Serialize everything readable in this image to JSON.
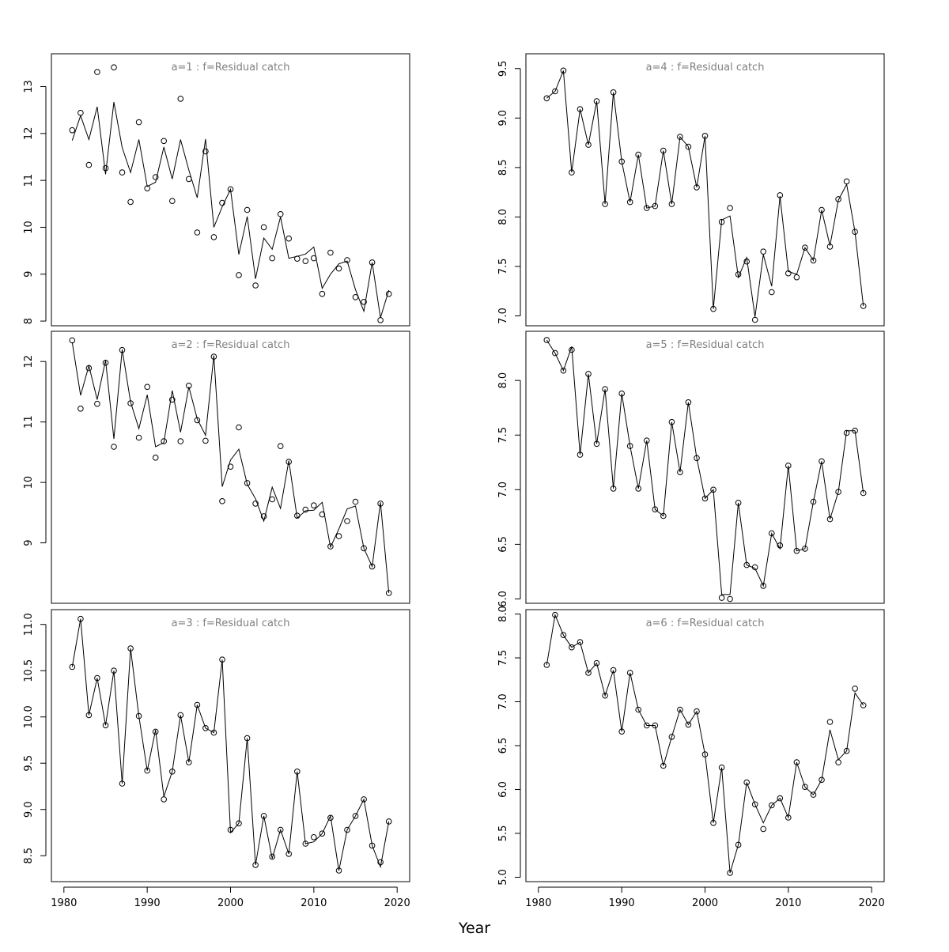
{
  "figure": {
    "xlabel": "Year"
  },
  "colors": {
    "frame": "#000000",
    "line": "#000000",
    "title": "#808080"
  },
  "chart_data": [
    {
      "type": "line",
      "title": "a=1  :  f=Residual catch",
      "x": [
        1981,
        1982,
        1983,
        1984,
        1985,
        1986,
        1987,
        1988,
        1989,
        1990,
        1991,
        1992,
        1993,
        1994,
        1995,
        1996,
        1997,
        1998,
        1999,
        2000,
        2001,
        2002,
        2003,
        2004,
        2005,
        2006,
        2007,
        2008,
        2009,
        2010,
        2011,
        2012,
        2013,
        2014,
        2015,
        2016,
        2017,
        2018,
        2019
      ],
      "observed": [
        12.07,
        12.44,
        11.33,
        13.31,
        11.26,
        13.41,
        11.17,
        10.54,
        12.24,
        10.83,
        11.07,
        11.84,
        10.56,
        12.74,
        11.03,
        9.89,
        11.62,
        9.79,
        10.52,
        10.81,
        8.98,
        10.37,
        8.76,
        10.0,
        9.34,
        10.28,
        9.76,
        9.33,
        9.28,
        9.34,
        8.58,
        9.46,
        9.12,
        9.3,
        8.51,
        8.41,
        9.25,
        8.02,
        8.58
      ],
      "fitted": [
        11.85,
        12.38,
        11.87,
        12.57,
        11.13,
        12.67,
        11.7,
        11.17,
        11.87,
        10.87,
        10.96,
        11.71,
        11.03,
        11.87,
        11.22,
        10.63,
        11.88,
        10.0,
        10.44,
        10.81,
        9.42,
        10.23,
        8.9,
        9.77,
        9.53,
        10.22,
        9.34,
        9.38,
        9.43,
        9.58,
        8.7,
        9.0,
        9.22,
        9.28,
        8.67,
        8.21,
        9.25,
        8.07,
        8.66
      ],
      "xlim": [
        1978.5,
        2021.5
      ],
      "ylim": [
        7.9,
        13.7
      ],
      "yticks": [
        8,
        9,
        10,
        11,
        12,
        13
      ],
      "ytick_labels": [
        "8",
        "9",
        "10",
        "11",
        "12",
        "13"
      ],
      "xticks": [],
      "xtick_labels": []
    },
    {
      "type": "line",
      "title": "a=4  :  f=Residual catch",
      "x": [
        1981,
        1982,
        1983,
        1984,
        1985,
        1986,
        1987,
        1988,
        1989,
        1990,
        1991,
        1992,
        1993,
        1994,
        1995,
        1996,
        1997,
        1998,
        1999,
        2000,
        2001,
        2002,
        2003,
        2004,
        2005,
        2006,
        2007,
        2008,
        2009,
        2010,
        2011,
        2012,
        2013,
        2014,
        2015,
        2016,
        2017,
        2018,
        2019
      ],
      "observed": [
        9.2,
        9.27,
        9.48,
        8.45,
        9.09,
        8.73,
        9.17,
        8.13,
        9.26,
        8.56,
        8.15,
        8.63,
        8.09,
        8.11,
        8.67,
        8.13,
        8.81,
        8.71,
        8.3,
        8.82,
        7.07,
        7.95,
        8.09,
        7.42,
        7.55,
        6.96,
        7.65,
        7.24,
        8.22,
        7.43,
        7.39,
        7.69,
        7.56,
        8.07,
        7.7,
        8.18,
        8.36,
        7.85,
        7.1
      ],
      "fitted": [
        9.2,
        9.27,
        9.48,
        8.45,
        9.09,
        8.73,
        9.17,
        8.13,
        9.26,
        8.56,
        8.15,
        8.63,
        8.09,
        8.11,
        8.67,
        8.13,
        8.81,
        8.71,
        8.3,
        8.82,
        7.07,
        7.97,
        8.01,
        7.39,
        7.59,
        6.99,
        7.62,
        7.3,
        8.21,
        7.45,
        7.42,
        7.69,
        7.56,
        8.07,
        7.71,
        8.17,
        8.33,
        7.85,
        7.1
      ],
      "xlim": [
        1978.5,
        2021.5
      ],
      "ylim": [
        6.9,
        9.65
      ],
      "yticks": [
        7.0,
        7.5,
        8.0,
        8.5,
        9.0,
        9.5
      ],
      "ytick_labels": [
        "7.0",
        "7.5",
        "8.0",
        "8.5",
        "9.0",
        "9.5"
      ],
      "xticks": [],
      "xtick_labels": []
    },
    {
      "type": "line",
      "title": "a=2  :  f=Residual catch",
      "x": [
        1981,
        1982,
        1983,
        1984,
        1985,
        1986,
        1987,
        1988,
        1989,
        1990,
        1991,
        1992,
        1993,
        1994,
        1995,
        1996,
        1997,
        1998,
        1999,
        2000,
        2001,
        2002,
        2003,
        2004,
        2005,
        2006,
        2007,
        2008,
        2009,
        2010,
        2011,
        2012,
        2013,
        2014,
        2015,
        2016,
        2017,
        2018,
        2019
      ],
      "observed": [
        12.35,
        11.22,
        11.89,
        11.3,
        11.98,
        10.59,
        12.19,
        11.31,
        10.74,
        11.58,
        10.41,
        10.68,
        11.37,
        10.68,
        11.6,
        11.03,
        10.69,
        12.08,
        9.69,
        10.26,
        10.91,
        9.99,
        9.65,
        9.44,
        9.72,
        10.6,
        10.34,
        9.45,
        9.55,
        9.62,
        9.47,
        8.94,
        9.11,
        9.36,
        9.68,
        8.91,
        8.61,
        9.65,
        8.17
      ],
      "fitted": [
        12.32,
        11.44,
        11.93,
        11.37,
        12.02,
        10.72,
        12.2,
        11.33,
        10.89,
        11.45,
        10.59,
        10.66,
        11.52,
        10.83,
        11.58,
        11.05,
        10.78,
        12.1,
        9.93,
        10.37,
        10.55,
        9.97,
        9.73,
        9.36,
        9.92,
        9.57,
        10.36,
        9.41,
        9.53,
        9.54,
        9.67,
        8.93,
        9.23,
        9.56,
        9.61,
        8.91,
        8.61,
        9.67,
        8.17
      ],
      "xlim": [
        1978.5,
        2021.5
      ],
      "ylim": [
        8.0,
        12.5
      ],
      "yticks": [
        9,
        10,
        11,
        12
      ],
      "ytick_labels": [
        "9",
        "10",
        "11",
        "12"
      ],
      "xticks": [],
      "xtick_labels": []
    },
    {
      "type": "line",
      "title": "a=5  :  f=Residual catch",
      "x": [
        1981,
        1982,
        1983,
        1984,
        1985,
        1986,
        1987,
        1988,
        1989,
        1990,
        1991,
        1992,
        1993,
        1994,
        1995,
        1996,
        1997,
        1998,
        1999,
        2000,
        2001,
        2002,
        2003,
        2004,
        2005,
        2006,
        2007,
        2008,
        2009,
        2010,
        2011,
        2012,
        2013,
        2014,
        2015,
        2016,
        2017,
        2018,
        2019
      ],
      "observed": [
        8.37,
        8.25,
        8.09,
        8.28,
        7.32,
        8.06,
        7.42,
        7.92,
        7.01,
        7.88,
        7.4,
        7.01,
        7.45,
        6.82,
        6.76,
        7.62,
        7.16,
        7.8,
        7.29,
        6.92,
        7.0,
        6.01,
        6.0,
        6.88,
        6.31,
        6.29,
        6.12,
        6.6,
        6.49,
        7.22,
        6.44,
        6.46,
        6.89,
        7.26,
        6.73,
        6.98,
        7.52,
        7.54,
        6.97
      ],
      "fitted": [
        8.37,
        8.25,
        8.09,
        8.31,
        7.32,
        8.06,
        7.42,
        7.92,
        7.01,
        7.88,
        7.4,
        7.01,
        7.45,
        6.82,
        6.76,
        7.62,
        7.16,
        7.8,
        7.29,
        6.92,
        7.0,
        6.04,
        6.04,
        6.88,
        6.31,
        6.28,
        6.12,
        6.6,
        6.46,
        7.22,
        6.44,
        6.46,
        6.89,
        7.26,
        6.73,
        6.98,
        7.54,
        7.54,
        6.97
      ],
      "xlim": [
        1978.5,
        2021.5
      ],
      "ylim": [
        5.96,
        8.45
      ],
      "yticks": [
        6.0,
        6.5,
        7.0,
        7.5,
        8.0
      ],
      "ytick_labels": [
        "6.0",
        "6.5",
        "7.0",
        "7.5",
        "8.0"
      ],
      "xticks": [],
      "xtick_labels": []
    },
    {
      "type": "line",
      "title": "a=3  :  f=Residual catch",
      "x": [
        1981,
        1982,
        1983,
        1984,
        1985,
        1986,
        1987,
        1988,
        1989,
        1990,
        1991,
        1992,
        1993,
        1994,
        1995,
        1996,
        1997,
        1998,
        1999,
        2000,
        2001,
        2002,
        2003,
        2004,
        2005,
        2006,
        2007,
        2008,
        2009,
        2010,
        2011,
        2012,
        2013,
        2014,
        2015,
        2016,
        2017,
        2018,
        2019
      ],
      "observed": [
        10.54,
        11.06,
        10.02,
        10.42,
        9.91,
        10.5,
        9.28,
        10.74,
        10.01,
        9.42,
        9.84,
        9.11,
        9.41,
        10.02,
        9.51,
        10.13,
        9.88,
        9.83,
        10.62,
        8.78,
        8.85,
        9.77,
        8.4,
        8.93,
        8.49,
        8.78,
        8.52,
        9.41,
        8.63,
        8.7,
        8.74,
        8.91,
        8.34,
        8.78,
        8.93,
        9.11,
        8.61,
        8.43,
        8.87
      ],
      "fitted": [
        10.54,
        11.06,
        10.02,
        10.42,
        9.91,
        10.5,
        9.28,
        10.74,
        10.01,
        9.42,
        9.86,
        9.14,
        9.41,
        10.02,
        9.51,
        10.13,
        9.88,
        9.83,
        10.62,
        8.75,
        8.85,
        9.77,
        8.4,
        8.93,
        8.47,
        8.78,
        8.52,
        9.41,
        8.63,
        8.65,
        8.74,
        8.93,
        8.34,
        8.78,
        8.93,
        9.11,
        8.61,
        8.38,
        8.87
      ],
      "xlim": [
        1978.5,
        2021.5
      ],
      "ylim": [
        8.22,
        11.16
      ],
      "yticks": [
        8.5,
        9.0,
        9.5,
        10.0,
        10.5,
        11.0
      ],
      "ytick_labels": [
        "8.5",
        "9.0",
        "9.5",
        "10.0",
        "10.5",
        "11.0"
      ],
      "xticks": [
        1980,
        1990,
        2000,
        2010,
        2020
      ],
      "xtick_labels": [
        "1980",
        "1990",
        "2000",
        "2010",
        "2020"
      ]
    },
    {
      "type": "line",
      "title": "a=6  :  f=Residual catch",
      "x": [
        1981,
        1982,
        1983,
        1984,
        1985,
        1986,
        1987,
        1988,
        1989,
        1990,
        1991,
        1992,
        1993,
        1994,
        1995,
        1996,
        1997,
        1998,
        1999,
        2000,
        2001,
        2002,
        2003,
        2004,
        2005,
        2006,
        2007,
        2008,
        2009,
        2010,
        2011,
        2012,
        2013,
        2014,
        2015,
        2016,
        2017,
        2018,
        2019
      ],
      "observed": [
        7.42,
        7.99,
        7.76,
        7.62,
        7.68,
        7.33,
        7.44,
        7.07,
        7.36,
        6.66,
        7.33,
        6.91,
        6.73,
        6.73,
        6.27,
        6.6,
        6.91,
        6.74,
        6.89,
        6.4,
        5.62,
        6.25,
        5.05,
        5.37,
        6.08,
        5.83,
        5.55,
        5.82,
        5.9,
        5.68,
        6.31,
        6.03,
        5.94,
        6.11,
        6.77,
        6.31,
        6.44,
        7.15,
        6.96
      ],
      "fitted": [
        7.42,
        7.99,
        7.76,
        7.62,
        7.68,
        7.33,
        7.44,
        7.07,
        7.36,
        6.66,
        7.33,
        6.91,
        6.73,
        6.73,
        6.27,
        6.6,
        6.91,
        6.74,
        6.89,
        6.4,
        5.62,
        6.25,
        5.05,
        5.37,
        6.08,
        5.83,
        5.62,
        5.82,
        5.9,
        5.68,
        6.31,
        6.03,
        5.94,
        6.11,
        6.68,
        6.34,
        6.44,
        7.1,
        6.96
      ],
      "xlim": [
        1978.5,
        2021.5
      ],
      "ylim": [
        4.95,
        8.05
      ],
      "yticks": [
        5.0,
        5.5,
        6.0,
        6.5,
        7.0,
        7.5,
        8.0
      ],
      "ytick_labels": [
        "5.0",
        "5.5",
        "6.0",
        "6.5",
        "7.0",
        "7.5",
        "8.0"
      ],
      "xticks": [
        1980,
        1990,
        2000,
        2010,
        2020
      ],
      "xtick_labels": [
        "1980",
        "1990",
        "2000",
        "2010",
        "2020"
      ]
    }
  ]
}
